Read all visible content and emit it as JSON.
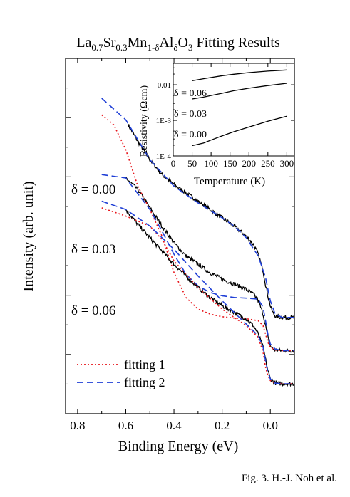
{
  "title": {
    "parts": [
      "La",
      "0.7",
      "Sr",
      "0.3",
      "Mn",
      "1-δ",
      "Al",
      "δ",
      "O",
      "3",
      " Fitting Results"
    ]
  },
  "caption": "Fig. 3. H.-J. Noh et al.",
  "chart_data": [
    {
      "type": "line",
      "xlabel": "Binding Energy (eV)",
      "ylabel": "Intensity (arb. unit)",
      "xlim": [
        0.85,
        -0.1
      ],
      "x_reversed": true,
      "xticks": [
        0.8,
        0.6,
        0.4,
        0.2,
        0.0
      ],
      "xtick_labels": [
        "0.8",
        "0.6",
        "0.4",
        "0.2",
        "0.0"
      ],
      "y_tick_labels_shown": false,
      "curve_labels": [
        "δ = 0.00",
        "δ = 0.03",
        "δ = 0.06"
      ],
      "legend": {
        "position": "bottom-left",
        "entries": [
          {
            "name": "fitting 1",
            "color": "#e8151b",
            "style": "dotted"
          },
          {
            "name": "fitting 2",
            "color": "#1f3fd6",
            "style": "dashed"
          }
        ]
      },
      "series": [
        {
          "curve": "δ = 0.00",
          "role": "data",
          "color": "#000000",
          "x": [
            0.59,
            0.55,
            0.5,
            0.45,
            0.4,
            0.35,
            0.3,
            0.25,
            0.2,
            0.15,
            0.1,
            0.07,
            0.05,
            0.03,
            0.02,
            0.01,
            0.0,
            -0.01,
            -0.02,
            -0.03,
            -0.05,
            -0.08,
            -0.1
          ],
          "y": [
            9.5,
            9.0,
            8.45,
            8.0,
            7.7,
            7.45,
            7.2,
            6.95,
            6.7,
            6.45,
            6.15,
            5.9,
            5.6,
            5.1,
            4.7,
            4.35,
            4.05,
            3.85,
            3.75,
            3.72,
            3.7,
            3.7,
            3.7
          ]
        },
        {
          "curve": "δ = 0.00",
          "role": "fitting 2",
          "color": "#1f3fd6",
          "x": [
            0.7,
            0.6,
            0.5,
            0.4,
            0.3,
            0.2,
            0.15,
            0.1,
            0.05,
            0.02,
            0.0,
            -0.02,
            -0.05,
            -0.1
          ],
          "y": [
            10.3,
            9.65,
            8.45,
            7.65,
            7.15,
            6.7,
            6.45,
            6.1,
            5.55,
            4.9,
            4.2,
            3.8,
            3.7,
            3.7
          ]
        },
        {
          "curve": "δ = 0.03",
          "role": "data",
          "color": "#000000",
          "x": [
            0.6,
            0.55,
            0.5,
            0.45,
            0.4,
            0.35,
            0.3,
            0.25,
            0.2,
            0.15,
            0.1,
            0.07,
            0.05,
            0.03,
            0.02,
            0.01,
            0.0,
            -0.01,
            -0.02,
            -0.05,
            -0.1
          ],
          "y": [
            7.9,
            7.55,
            7.0,
            6.45,
            5.95,
            5.55,
            5.3,
            5.05,
            4.85,
            4.7,
            4.55,
            4.4,
            4.2,
            3.8,
            3.45,
            3.1,
            2.85,
            2.75,
            2.72,
            2.7,
            2.7
          ]
        },
        {
          "curve": "δ = 0.03",
          "role": "fitting 1",
          "color": "#e8151b",
          "x": [
            0.7,
            0.65,
            0.6,
            0.55,
            0.5,
            0.45,
            0.4,
            0.35,
            0.3,
            0.25,
            0.2,
            0.15,
            0.1,
            0.05,
            0.03,
            0.02,
            0.01,
            0.0,
            -0.02,
            -0.05,
            -0.1
          ],
          "y": [
            9.8,
            9.5,
            8.75,
            7.65,
            6.95,
            6.15,
            5.05,
            4.3,
            3.95,
            3.8,
            3.72,
            3.68,
            3.66,
            3.6,
            3.45,
            3.2,
            2.95,
            2.8,
            2.72,
            2.7,
            2.7
          ]
        },
        {
          "curve": "δ = 0.03",
          "role": "fitting 2",
          "color": "#1f3fd6",
          "x": [
            0.7,
            0.6,
            0.5,
            0.45,
            0.4,
            0.35,
            0.3,
            0.25,
            0.2,
            0.15,
            0.1,
            0.05,
            0.03,
            0.02,
            0.01,
            0.0,
            -0.02,
            -0.05,
            -0.1
          ],
          "y": [
            8.0,
            7.9,
            6.95,
            6.3,
            5.6,
            5.0,
            4.65,
            4.45,
            4.35,
            4.3,
            4.28,
            4.25,
            4.0,
            3.6,
            3.2,
            2.9,
            2.75,
            2.7,
            2.7
          ]
        },
        {
          "curve": "δ = 0.06",
          "role": "data",
          "color": "#000000",
          "x": [
            0.6,
            0.55,
            0.5,
            0.45,
            0.4,
            0.35,
            0.3,
            0.25,
            0.2,
            0.15,
            0.1,
            0.07,
            0.05,
            0.03,
            0.02,
            0.01,
            0.0,
            -0.02,
            -0.05,
            -0.1
          ],
          "y": [
            6.95,
            6.5,
            6.1,
            5.7,
            5.3,
            4.95,
            4.6,
            4.3,
            4.05,
            3.85,
            3.65,
            3.45,
            3.2,
            2.8,
            2.45,
            2.1,
            1.85,
            1.72,
            1.7,
            1.7
          ]
        },
        {
          "curve": "δ = 0.06",
          "role": "fitting 1",
          "color": "#e8151b",
          "x": [
            0.7,
            0.6,
            0.5,
            0.45,
            0.4,
            0.3,
            0.2,
            0.1,
            0.05,
            0.03,
            0.02,
            0.01,
            0.0,
            -0.02,
            -0.05,
            -0.1
          ],
          "y": [
            7.0,
            6.75,
            6.45,
            6.05,
            5.4,
            4.6,
            3.95,
            3.45,
            3.1,
            2.65,
            2.2,
            1.95,
            1.8,
            1.72,
            1.7,
            1.7
          ]
        },
        {
          "curve": "δ = 0.06",
          "role": "fitting 2",
          "color": "#1f3fd6",
          "x": [
            0.7,
            0.6,
            0.5,
            0.4,
            0.3,
            0.2,
            0.15,
            0.1,
            0.05,
            0.03,
            0.02,
            0.01,
            0.0,
            -0.02,
            -0.05,
            -0.1
          ],
          "y": [
            7.2,
            6.95,
            6.45,
            5.75,
            4.95,
            4.2,
            3.85,
            3.5,
            3.15,
            2.8,
            2.4,
            2.05,
            1.85,
            1.72,
            1.7,
            1.7
          ]
        }
      ]
    },
    {
      "type": "line",
      "inset": true,
      "xlabel": "Temperature (K)",
      "ylabel": "Resistivity (Ωcm)",
      "xlim": [
        0,
        320
      ],
      "ylim": [
        0.0001,
        0.04
      ],
      "y_scale": "log",
      "xticks": [
        0,
        50,
        100,
        150,
        200,
        250,
        300
      ],
      "xtick_labels": [
        "0",
        "50",
        "100",
        "150",
        "200",
        "250",
        "300"
      ],
      "yticks": [
        0.0001,
        0.001,
        0.01
      ],
      "ytick_labels": [
        "1E-4",
        "1E-3",
        "0.01"
      ],
      "series": [
        {
          "name": "δ = 0.00",
          "x": [
            50,
            60,
            80,
            100,
            130,
            160,
            200,
            250,
            300
          ],
          "y": [
            0.000195,
            0.000205,
            0.00023,
            0.00028,
            0.00037,
            0.00048,
            0.00065,
            0.00095,
            0.0013
          ]
        },
        {
          "name": "δ = 0.03",
          "x": [
            50,
            80,
            100,
            130,
            160,
            200,
            250,
            300
          ],
          "y": [
            0.004,
            0.0045,
            0.005,
            0.0058,
            0.0068,
            0.008,
            0.0095,
            0.011
          ]
        },
        {
          "name": "δ = 0.06",
          "x": [
            50,
            80,
            100,
            130,
            160,
            200,
            250,
            300
          ],
          "y": [
            0.013,
            0.0148,
            0.016,
            0.018,
            0.0198,
            0.022,
            0.0242,
            0.026
          ]
        }
      ],
      "curve_labels": [
        "δ = 0.06",
        "δ = 0.03",
        "δ = 0.00"
      ]
    }
  ]
}
